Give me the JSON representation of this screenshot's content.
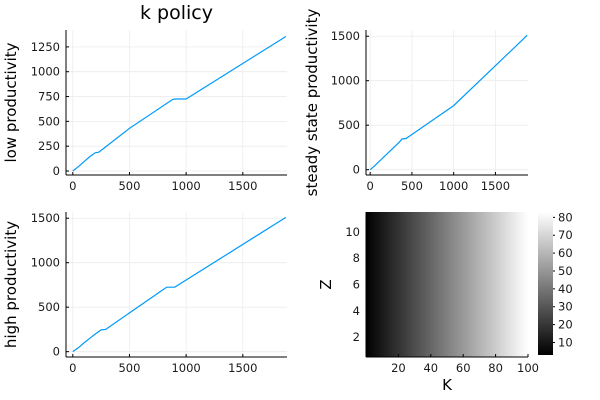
{
  "chart_data": [
    {
      "type": "line",
      "title": "k policy",
      "xlabel": "",
      "ylabel": "low productivity",
      "xlim": [
        -60,
        1890
      ],
      "ylim": [
        -40,
        1420
      ],
      "xticks": [
        0,
        500,
        1000,
        1500
      ],
      "yticks": [
        0,
        250,
        500,
        750,
        1000,
        1250
      ],
      "grid": true,
      "color": "#009AFA",
      "x": [
        0,
        50,
        100,
        150,
        200,
        230,
        500,
        880,
        900,
        1000,
        1880
      ],
      "y": [
        0,
        45,
        95,
        145,
        185,
        190,
        430,
        720,
        725,
        725,
        1355
      ]
    },
    {
      "type": "line",
      "title": "",
      "xlabel": "",
      "ylabel": "steady state productivity",
      "xlim": [
        -50,
        1890
      ],
      "ylim": [
        -60,
        1570
      ],
      "xticks": [
        0,
        500,
        1000,
        1500
      ],
      "yticks": [
        0,
        500,
        1000,
        1500
      ],
      "grid": true,
      "color": "#009AFA",
      "x": [
        0,
        50,
        100,
        150,
        200,
        250,
        300,
        350,
        380,
        430,
        1000,
        1880
      ],
      "y": [
        0,
        40,
        85,
        130,
        175,
        220,
        265,
        310,
        345,
        350,
        720,
        1510
      ]
    },
    {
      "type": "line",
      "title": "",
      "xlabel": "",
      "ylabel": "high productivity",
      "xlim": [
        -60,
        1890
      ],
      "ylim": [
        -60,
        1570
      ],
      "xticks": [
        0,
        500,
        1000,
        1500
      ],
      "yticks": [
        0,
        500,
        1000,
        1500
      ],
      "grid": true,
      "color": "#009AFA",
      "x": [
        0,
        50,
        100,
        150,
        200,
        250,
        290,
        800,
        830,
        900,
        1880
      ],
      "y": [
        0,
        45,
        100,
        150,
        200,
        245,
        250,
        700,
        725,
        725,
        1510
      ]
    },
    {
      "type": "heatmap",
      "title": "",
      "xlabel": "K",
      "ylabel": "Z",
      "xlim": [
        0,
        100
      ],
      "ylim": [
        0.5,
        11.5
      ],
      "xticks": [
        20,
        40,
        60,
        80,
        100
      ],
      "yticks": [
        2,
        4,
        6,
        8,
        10
      ],
      "colorbar_ticks": [
        10,
        20,
        30,
        40,
        50,
        60,
        70,
        80
      ],
      "colorbar_range": [
        3,
        83
      ],
      "colormap": "greys (black to white)",
      "value_model": "value increases with K, approximately 3 + 0.8*K; nearly constant across Z"
    }
  ]
}
